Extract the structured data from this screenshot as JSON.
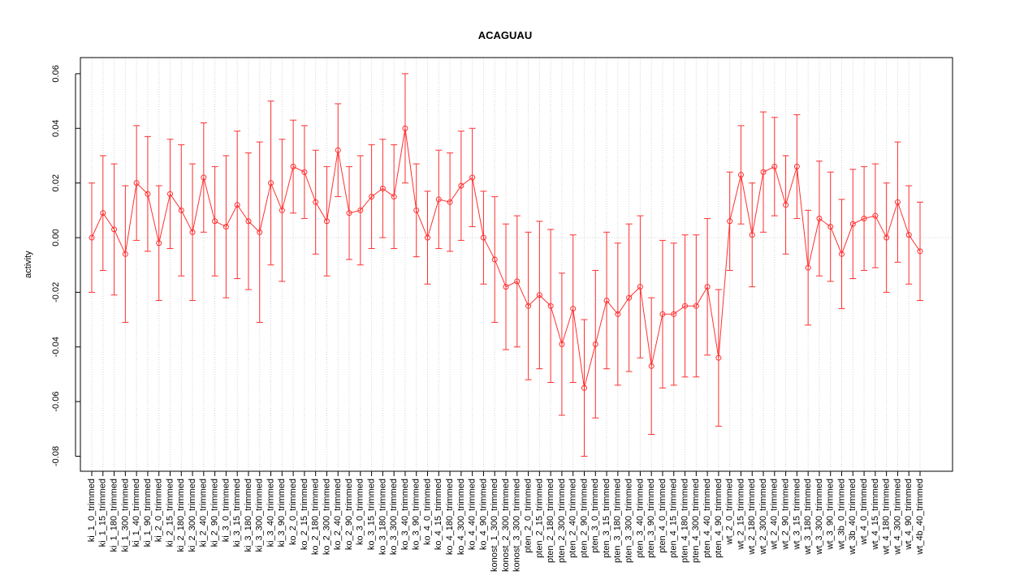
{
  "chart_data": {
    "type": "errorbar",
    "title": "ACAGUAU",
    "y_label": "activity",
    "categories": [
      "ki_1_0_trimmed",
      "ki_1_15_trimmed",
      "ki_1_180_trimmed",
      "ki_1_300_trimmed",
      "ki_1_40_trimmed",
      "ki_1_90_trimmed",
      "ki_2_0_trimmed",
      "ki_2_15_trimmed",
      "ki_2_180_trimmed",
      "ki_2_300_trimmed",
      "ki_2_40_trimmed",
      "ki_2_90_trimmed",
      "ki_3_0_trimmed",
      "ki_3_15_trimmed",
      "ki_3_180_trimmed",
      "ki_3_300_trimmed",
      "ki_3_40_trimmed",
      "ki_3_90_trimmed",
      "ko_2_0_trimmed",
      "ko_2_15_trimmed",
      "ko_2_180_trimmed",
      "ko_2_300_trimmed",
      "ko_2_40_trimmed",
      "ko_2_90_trimmed",
      "ko_3_0_trimmed",
      "ko_3_15_trimmed",
      "ko_3_180_trimmed",
      "ko_3_300_trimmed",
      "ko_3_40_trimmed",
      "ko_3_90_trimmed",
      "ko_4_0_trimmed",
      "ko_4_15_trimmed",
      "ko_4_180_trimmed",
      "ko_4_300_trimmed",
      "ko_4_40_trimmed",
      "ko_4_90_trimmed",
      "konost_1_300_trimmed",
      "konost_2_300_trimmed",
      "konost_3_300_trimmed",
      "pten_2_0_trimmed",
      "pten_2_15_trimmed",
      "pten_2_180_trimmed",
      "pten_2_300_trimmed",
      "pten_2_40_trimmed",
      "pten_2_90_trimmed",
      "pten_3_0_trimmed",
      "pten_3_15_trimmed",
      "pten_3_180_trimmed",
      "pten_3_300_trimmed",
      "pten_3_40_trimmed",
      "pten_3_90_trimmed",
      "pten_4_0_trimmed",
      "pten_4_15_trimmed",
      "pten_4_180_trimmed",
      "pten_4_300_trimmed",
      "pten_4_40_trimmed",
      "pten_4_90_trimmed",
      "wt_2_0_trimmed",
      "wt_2_15_trimmed",
      "wt_2_180_trimmed",
      "wt_2_300_trimmed",
      "wt_2_40_trimmed",
      "wt_2_90_trimmed",
      "wt_3_15_trimmed",
      "wt_3_180_trimmed",
      "wt_3_300_trimmed",
      "wt_3_90_trimmed",
      "wt_3b_0_trimmed",
      "wt_3b_40_trimmed",
      "wt_4_0_trimmed",
      "wt_4_15_trimmed",
      "wt_4_180_trimmed",
      "wt_4_300_trimmed",
      "wt_4_90_trimmed",
      "wt_4b_40_trimmed"
    ],
    "color": "#ff3030",
    "values": [
      0.0,
      0.009,
      0.003,
      -0.006,
      0.02,
      0.016,
      -0.002,
      0.016,
      0.01,
      0.002,
      0.022,
      0.006,
      0.004,
      0.012,
      0.006,
      0.002,
      0.02,
      0.01,
      0.026,
      0.024,
      0.013,
      0.006,
      0.032,
      0.009,
      0.01,
      0.015,
      0.018,
      0.015,
      0.04,
      0.01,
      0.0,
      0.014,
      0.013,
      0.019,
      0.022,
      0.0,
      -0.008,
      -0.018,
      -0.016,
      -0.025,
      -0.021,
      -0.025,
      -0.039,
      -0.026,
      -0.055,
      -0.039,
      -0.023,
      -0.028,
      -0.022,
      -0.018,
      -0.047,
      -0.028,
      -0.028,
      -0.025,
      -0.025,
      -0.018,
      -0.044,
      0.006,
      0.023,
      0.001,
      0.024,
      0.026,
      0.012,
      0.026,
      -0.011,
      0.007,
      0.004,
      -0.006,
      0.005,
      0.007,
      0.008,
      0.0,
      0.013,
      0.001,
      -0.005
    ],
    "errors": [
      0.02,
      0.021,
      0.024,
      0.025,
      0.021,
      0.021,
      0.021,
      0.02,
      0.024,
      0.025,
      0.02,
      0.02,
      0.026,
      0.027,
      0.025,
      0.033,
      0.03,
      0.026,
      0.017,
      0.017,
      0.019,
      0.02,
      0.017,
      0.017,
      0.02,
      0.019,
      0.018,
      0.019,
      0.02,
      0.017,
      0.017,
      0.018,
      0.018,
      0.02,
      0.018,
      0.017,
      0.023,
      0.023,
      0.024,
      0.027,
      0.027,
      0.028,
      0.026,
      0.027,
      0.025,
      0.027,
      0.025,
      0.026,
      0.027,
      0.026,
      0.025,
      0.027,
      0.026,
      0.026,
      0.026,
      0.025,
      0.025,
      0.018,
      0.018,
      0.019,
      0.022,
      0.018,
      0.018,
      0.019,
      0.021,
      0.021,
      0.02,
      0.02,
      0.02,
      0.019,
      0.019,
      0.02,
      0.022,
      0.018,
      0.018
    ],
    "ylim": [
      -0.0855,
      0.0659
    ],
    "yticks": [
      -0.08,
      -0.06,
      -0.04,
      -0.02,
      {
        "value": 0,
        "label": "0.00"
      },
      0.02,
      0.04,
      0.06
    ],
    "grid": true
  }
}
